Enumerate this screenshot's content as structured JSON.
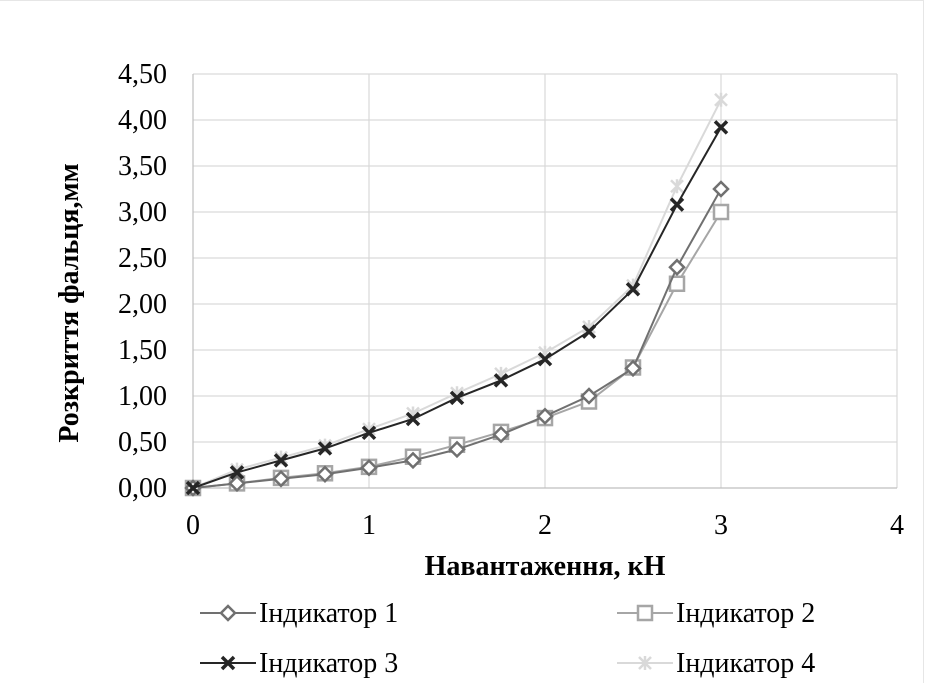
{
  "chart_data": {
    "type": "line",
    "title": "",
    "xlabel": "Навантаження, кН",
    "ylabel": "Розкриття фальця,мм",
    "xlim": [
      0,
      4
    ],
    "ylim": [
      0,
      4.5
    ],
    "x_ticks": [
      "0",
      "1",
      "2",
      "3",
      "4"
    ],
    "y_ticks": [
      "0,00",
      "0,50",
      "1,00",
      "1,50",
      "2,00",
      "2,50",
      "3,00",
      "3,50",
      "4,00",
      "4,50"
    ],
    "grid": true,
    "legend_position": "bottom",
    "x": [
      0,
      0.25,
      0.5,
      0.75,
      1,
      1.25,
      1.5,
      1.75,
      2,
      2.25,
      2.5,
      2.75,
      3
    ],
    "series": [
      {
        "name": "Індикатор 1",
        "marker": "diamond",
        "color": "#707070",
        "values": [
          0,
          0.05,
          0.1,
          0.15,
          0.22,
          0.3,
          0.42,
          0.58,
          0.78,
          1.0,
          1.3,
          2.4,
          3.25
        ]
      },
      {
        "name": "Індикатор 2",
        "marker": "square",
        "color": "#a6a6a6",
        "values": [
          0,
          0.05,
          0.11,
          0.16,
          0.23,
          0.34,
          0.47,
          0.61,
          0.76,
          0.94,
          1.31,
          2.22,
          3.0
        ]
      },
      {
        "name": "Індикатор 3",
        "marker": "x",
        "color": "#262626",
        "values": [
          0,
          0.17,
          0.3,
          0.43,
          0.6,
          0.75,
          0.98,
          1.17,
          1.4,
          1.7,
          2.16,
          3.08,
          3.92
        ]
      },
      {
        "name": "Індикатор 4",
        "marker": "star",
        "color": "#d9d9d9",
        "values": [
          0,
          0.2,
          0.33,
          0.46,
          0.64,
          0.81,
          1.03,
          1.24,
          1.47,
          1.75,
          2.2,
          3.28,
          4.22
        ]
      }
    ]
  }
}
